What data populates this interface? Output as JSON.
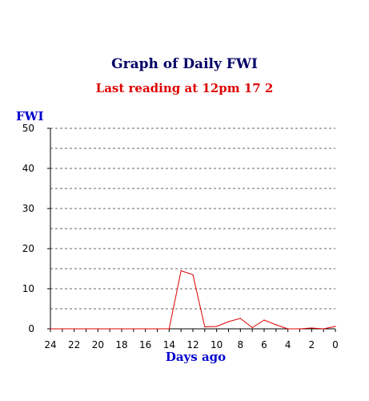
{
  "chart_data": {
    "type": "line",
    "title": "Graph of Daily FWI",
    "subtitle": "Last reading at 12pm  17 2",
    "ylabel": "FWI",
    "xlabel": "Days ago",
    "ylim": [
      0,
      50
    ],
    "xlim": [
      24,
      0
    ],
    "y_ticks": [
      "0",
      "10",
      "20",
      "30",
      "40",
      "50"
    ],
    "x_ticks": [
      "24",
      "22",
      "20",
      "18",
      "16",
      "14",
      "12",
      "10",
      "8",
      "6",
      "4",
      "2",
      "0"
    ],
    "grid": "horizontal dashed",
    "line_color": "#dd0000",
    "x": [
      24,
      23,
      22,
      21,
      20,
      19,
      18,
      17,
      16,
      15,
      14,
      13,
      12,
      11,
      10,
      9,
      8,
      7,
      6,
      5,
      4,
      3,
      2,
      1,
      0
    ],
    "values": [
      0,
      0,
      0,
      0,
      0,
      0,
      0,
      0,
      0,
      0,
      0,
      14.5,
      13.5,
      0.5,
      0.6,
      1.8,
      2.6,
      0.3,
      2.2,
      1.0,
      0,
      0,
      0.2,
      0,
      0.6
    ]
  }
}
